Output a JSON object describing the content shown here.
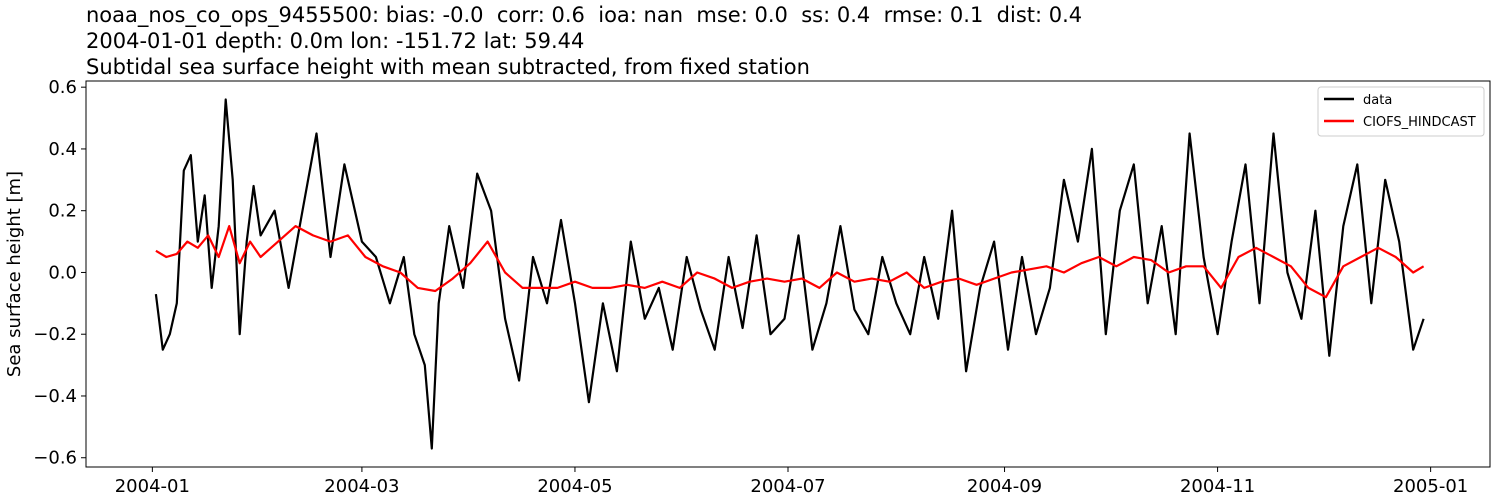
{
  "title_lines": [
    "noaa_nos_co_ops_9455500: bias: -0.0  corr: 0.6  ioa: nan  mse: 0.0  ss: 0.4  rmse: 0.1  dist: 0.4",
    "2004-01-01 depth: 0.0m lon: -151.72 lat: 59.44",
    "Subtidal sea surface height with mean subtracted, from fixed station"
  ],
  "chart_data": {
    "type": "line",
    "ylabel": "Sea surface height [m]",
    "xlabel": "",
    "x_ticks": [
      "2004-01",
      "2004-03",
      "2004-05",
      "2004-07",
      "2004-09",
      "2004-11",
      "2005-01"
    ],
    "y_ticks": [
      "0.6",
      "0.4",
      "0.2",
      "0.0",
      "−0.2",
      "−0.4",
      "−0.6"
    ],
    "ylim": [
      -0.63,
      0.62
    ],
    "xlim": [
      "2003-12-13",
      "2005-01-18"
    ],
    "grid": false,
    "legend_position": "top-right",
    "series": [
      {
        "name": "data",
        "color": "#000000",
        "x": [
          "2004-01-02",
          "2004-01-04",
          "2004-01-06",
          "2004-01-08",
          "2004-01-10",
          "2004-01-12",
          "2004-01-14",
          "2004-01-16",
          "2004-01-18",
          "2004-01-20",
          "2004-01-22",
          "2004-01-24",
          "2004-01-26",
          "2004-01-28",
          "2004-01-30",
          "2004-02-01",
          "2004-02-05",
          "2004-02-09",
          "2004-02-13",
          "2004-02-17",
          "2004-02-21",
          "2004-02-25",
          "2004-03-01",
          "2004-03-05",
          "2004-03-09",
          "2004-03-13",
          "2004-03-16",
          "2004-03-19",
          "2004-03-21",
          "2004-03-23",
          "2004-03-26",
          "2004-03-30",
          "2004-04-03",
          "2004-04-07",
          "2004-04-11",
          "2004-04-15",
          "2004-04-19",
          "2004-04-23",
          "2004-04-27",
          "2004-05-01",
          "2004-05-05",
          "2004-05-09",
          "2004-05-13",
          "2004-05-17",
          "2004-05-21",
          "2004-05-25",
          "2004-05-29",
          "2004-06-02",
          "2004-06-06",
          "2004-06-10",
          "2004-06-14",
          "2004-06-18",
          "2004-06-22",
          "2004-06-26",
          "2004-06-30",
          "2004-07-04",
          "2004-07-08",
          "2004-07-12",
          "2004-07-16",
          "2004-07-20",
          "2004-07-24",
          "2004-07-28",
          "2004-08-01",
          "2004-08-05",
          "2004-08-09",
          "2004-08-13",
          "2004-08-17",
          "2004-08-21",
          "2004-08-25",
          "2004-08-29",
          "2004-09-02",
          "2004-09-06",
          "2004-09-10",
          "2004-09-14",
          "2004-09-18",
          "2004-09-22",
          "2004-09-26",
          "2004-09-30",
          "2004-10-04",
          "2004-10-08",
          "2004-10-12",
          "2004-10-16",
          "2004-10-20",
          "2004-10-24",
          "2004-10-28",
          "2004-11-01",
          "2004-11-05",
          "2004-11-09",
          "2004-11-13",
          "2004-11-17",
          "2004-11-21",
          "2004-11-25",
          "2004-11-29",
          "2004-12-03",
          "2004-12-07",
          "2004-12-11",
          "2004-12-15",
          "2004-12-19",
          "2004-12-23",
          "2004-12-27",
          "2004-12-30"
        ],
        "values": [
          -0.07,
          -0.25,
          -0.2,
          -0.1,
          0.33,
          0.38,
          0.1,
          0.25,
          -0.05,
          0.15,
          0.56,
          0.3,
          -0.2,
          0.1,
          0.28,
          0.12,
          0.2,
          -0.05,
          0.2,
          0.45,
          0.05,
          0.35,
          0.1,
          0.05,
          -0.1,
          0.05,
          -0.2,
          -0.3,
          -0.57,
          -0.1,
          0.15,
          -0.05,
          0.32,
          0.2,
          -0.15,
          -0.35,
          0.05,
          -0.1,
          0.17,
          -0.1,
          -0.42,
          -0.1,
          -0.32,
          0.1,
          -0.15,
          -0.05,
          -0.25,
          0.05,
          -0.12,
          -0.25,
          0.05,
          -0.18,
          0.12,
          -0.2,
          -0.15,
          0.12,
          -0.25,
          -0.1,
          0.15,
          -0.12,
          -0.2,
          0.05,
          -0.1,
          -0.2,
          0.05,
          -0.15,
          0.2,
          -0.32,
          -0.05,
          0.1,
          -0.25,
          0.05,
          -0.2,
          -0.05,
          0.3,
          0.1,
          0.4,
          -0.2,
          0.2,
          0.35,
          -0.1,
          0.15,
          -0.2,
          0.45,
          0.05,
          -0.2,
          0.1,
          0.35,
          -0.1,
          0.45,
          0.0,
          -0.15,
          0.2,
          -0.27,
          0.15,
          0.35,
          -0.1,
          0.3,
          0.1,
          -0.25,
          -0.15
        ]
      },
      {
        "name": "CIOFS_HINDCAST",
        "color": "#ff0000",
        "x": [
          "2004-01-02",
          "2004-01-05",
          "2004-01-08",
          "2004-01-11",
          "2004-01-14",
          "2004-01-17",
          "2004-01-20",
          "2004-01-23",
          "2004-01-26",
          "2004-01-29",
          "2004-02-01",
          "2004-02-06",
          "2004-02-11",
          "2004-02-16",
          "2004-02-21",
          "2004-02-26",
          "2004-03-02",
          "2004-03-07",
          "2004-03-12",
          "2004-03-17",
          "2004-03-22",
          "2004-03-27",
          "2004-04-01",
          "2004-04-06",
          "2004-04-11",
          "2004-04-16",
          "2004-04-21",
          "2004-04-26",
          "2004-05-01",
          "2004-05-06",
          "2004-05-11",
          "2004-05-16",
          "2004-05-21",
          "2004-05-26",
          "2004-05-31",
          "2004-06-05",
          "2004-06-10",
          "2004-06-15",
          "2004-06-20",
          "2004-06-25",
          "2004-06-30",
          "2004-07-05",
          "2004-07-10",
          "2004-07-15",
          "2004-07-20",
          "2004-07-25",
          "2004-07-30",
          "2004-08-04",
          "2004-08-09",
          "2004-08-14",
          "2004-08-19",
          "2004-08-24",
          "2004-08-29",
          "2004-09-03",
          "2004-09-08",
          "2004-09-13",
          "2004-09-18",
          "2004-09-23",
          "2004-09-28",
          "2004-10-03",
          "2004-10-08",
          "2004-10-13",
          "2004-10-18",
          "2004-10-23",
          "2004-10-28",
          "2004-11-02",
          "2004-11-07",
          "2004-11-12",
          "2004-11-17",
          "2004-11-22",
          "2004-11-27",
          "2004-12-02",
          "2004-12-07",
          "2004-12-12",
          "2004-12-17",
          "2004-12-22",
          "2004-12-27",
          "2004-12-30"
        ],
        "values": [
          0.07,
          0.05,
          0.06,
          0.1,
          0.08,
          0.12,
          0.05,
          0.15,
          0.03,
          0.1,
          0.05,
          0.1,
          0.15,
          0.12,
          0.1,
          0.12,
          0.05,
          0.02,
          0.0,
          -0.05,
          -0.06,
          -0.02,
          0.03,
          0.1,
          0.0,
          -0.05,
          -0.05,
          -0.05,
          -0.03,
          -0.05,
          -0.05,
          -0.04,
          -0.05,
          -0.03,
          -0.05,
          0.0,
          -0.02,
          -0.05,
          -0.03,
          -0.02,
          -0.03,
          -0.02,
          -0.05,
          0.0,
          -0.03,
          -0.02,
          -0.03,
          0.0,
          -0.05,
          -0.03,
          -0.02,
          -0.04,
          -0.02,
          0.0,
          0.01,
          0.02,
          0.0,
          0.03,
          0.05,
          0.02,
          0.05,
          0.04,
          0.0,
          0.02,
          0.02,
          -0.05,
          0.05,
          0.08,
          0.05,
          0.02,
          -0.05,
          -0.08,
          0.02,
          0.05,
          0.08,
          0.05,
          0.0,
          0.02
        ]
      }
    ]
  }
}
